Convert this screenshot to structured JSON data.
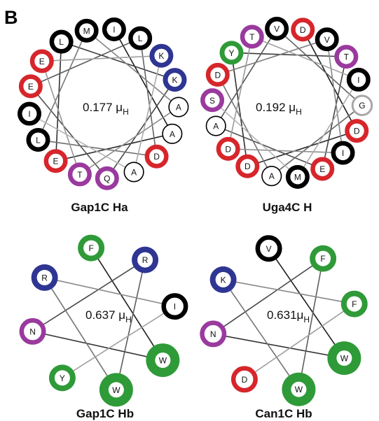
{
  "panel_label": "B",
  "colors": {
    "hydrophobic": "#000000",
    "positive": "#2f3592",
    "negative": "#d6262b",
    "polar": "#9a3a9e",
    "aromatic": "#2f9a38",
    "glycine": "#a8a8a8"
  },
  "wheels": [
    {
      "id": "gap1c-ha",
      "name": "Gap1C Ha",
      "moment_value": "0.177 μ",
      "moment_sub": "H",
      "residues": [
        {
          "aa": "I",
          "cls": "hydrophobic"
        },
        {
          "aa": "L",
          "cls": "hydrophobic"
        },
        {
          "aa": "K",
          "cls": "positive"
        },
        {
          "aa": "K",
          "cls": "positive"
        },
        {
          "aa": "A",
          "cls": "hydrophobic"
        },
        {
          "aa": "A",
          "cls": "hydrophobic"
        },
        {
          "aa": "D",
          "cls": "negative"
        },
        {
          "aa": "A",
          "cls": "hydrophobic"
        },
        {
          "aa": "Q",
          "cls": "polar"
        },
        {
          "aa": "T",
          "cls": "polar"
        },
        {
          "aa": "E",
          "cls": "negative"
        },
        {
          "aa": "L",
          "cls": "hydrophobic"
        },
        {
          "aa": "I",
          "cls": "hydrophobic"
        },
        {
          "aa": "E",
          "cls": "negative"
        },
        {
          "aa": "E",
          "cls": "negative"
        },
        {
          "aa": "L",
          "cls": "hydrophobic"
        },
        {
          "aa": "M",
          "cls": "hydrophobic"
        }
      ]
    },
    {
      "id": "uga4c-h",
      "name": "Uga4C H",
      "moment_value": "0.192 μ",
      "moment_sub": "H",
      "residues": [
        {
          "aa": "D",
          "cls": "negative"
        },
        {
          "aa": "V",
          "cls": "hydrophobic"
        },
        {
          "aa": "T",
          "cls": "polar"
        },
        {
          "aa": "I",
          "cls": "hydrophobic"
        },
        {
          "aa": "G",
          "cls": "glycine"
        },
        {
          "aa": "D",
          "cls": "negative"
        },
        {
          "aa": "I",
          "cls": "hydrophobic"
        },
        {
          "aa": "E",
          "cls": "negative"
        },
        {
          "aa": "M",
          "cls": "hydrophobic"
        },
        {
          "aa": "A",
          "cls": "hydrophobic"
        },
        {
          "aa": "D",
          "cls": "negative"
        },
        {
          "aa": "D",
          "cls": "negative"
        },
        {
          "aa": "A",
          "cls": "hydrophobic"
        },
        {
          "aa": "S",
          "cls": "polar"
        },
        {
          "aa": "D",
          "cls": "negative"
        },
        {
          "aa": "Y",
          "cls": "aromatic"
        },
        {
          "aa": "T",
          "cls": "polar"
        },
        {
          "aa": "V",
          "cls": "hydrophobic"
        }
      ]
    },
    {
      "id": "gap1c-hb",
      "name": "Gap1C Hb",
      "moment_value": "0.637 μ",
      "moment_sub": "H",
      "residues": [
        {
          "aa": "F",
          "cls": "aromatic"
        },
        {
          "aa": "R",
          "cls": "positive"
        },
        {
          "aa": "I",
          "cls": "hydrophobic"
        },
        {
          "aa": "W",
          "cls": "aromatic"
        },
        {
          "aa": "W",
          "cls": "aromatic"
        },
        {
          "aa": "Y",
          "cls": "aromatic"
        },
        {
          "aa": "N",
          "cls": "polar"
        },
        {
          "aa": "R",
          "cls": "positive"
        }
      ]
    },
    {
      "id": "can1c-hb",
      "name": "Can1C Hb",
      "moment_value": "0.631μ",
      "moment_sub": "H",
      "residues": [
        {
          "aa": "V",
          "cls": "hydrophobic"
        },
        {
          "aa": "F",
          "cls": "aromatic"
        },
        {
          "aa": "F",
          "cls": "aromatic"
        },
        {
          "aa": "W",
          "cls": "aromatic"
        },
        {
          "aa": "W",
          "cls": "aromatic"
        },
        {
          "aa": "D",
          "cls": "negative"
        },
        {
          "aa": "N",
          "cls": "polar"
        },
        {
          "aa": "K",
          "cls": "positive"
        }
      ]
    }
  ]
}
